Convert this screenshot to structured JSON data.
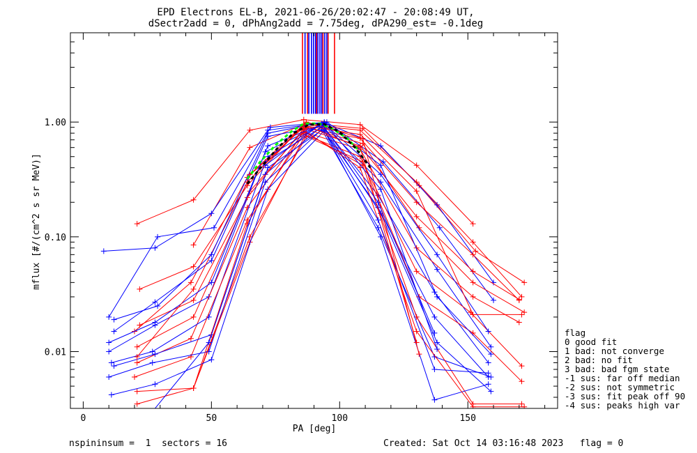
{
  "chart_data": {
    "type": "line",
    "title": "EPD Electrons EL-B, 2021-06-26/20:02:47 - 20:08:49 UT,",
    "subtitle": "dSectr2add = 0, dPhAng2add = 7.75deg, dPA290_est=  -0.1deg",
    "xlabel": "PA [deg]",
    "ylabel": "mflux [#/(cm^2 s sr MeV)]",
    "xlim": [
      -5,
      185
    ],
    "ylim": [
      0.0032,
      6
    ],
    "yscale": "log",
    "x_ticks": [
      0,
      50,
      100,
      150
    ],
    "x_tick_labels": [
      "0",
      "50",
      "100",
      "150"
    ],
    "y_ticks": [
      0.01,
      0.1,
      1.0
    ],
    "y_tick_labels": [
      "0.01",
      "0.10",
      "1.00"
    ],
    "grid": false,
    "colors": {
      "red": "#ff0000",
      "blue": "#0000ff",
      "green": "#00ff00",
      "black": "#000000"
    },
    "vertical_markers": {
      "y_from": 1.18,
      "red_x": [
        85.5,
        87.5,
        91.0,
        93.5,
        95.5,
        98.0
      ],
      "blue_x": [
        86.5,
        88.0,
        89.0,
        89.8,
        90.6,
        91.5,
        92.3,
        93.0,
        94.2,
        95.0
      ]
    },
    "series": [
      {
        "color": "red",
        "x": [
          21,
          43,
          65,
          86,
          108,
          130,
          152
        ],
        "y": [
          0.13,
          0.21,
          0.85,
          1.05,
          0.95,
          0.42,
          0.13
        ]
      },
      {
        "color": "red",
        "x": [
          43,
          65,
          87,
          109,
          131,
          153,
          172
        ],
        "y": [
          0.085,
          0.6,
          0.98,
          0.88,
          0.28,
          0.075,
          0.04
        ]
      },
      {
        "color": "blue",
        "x": [
          8,
          28,
          50,
          72,
          94,
          116,
          138,
          160
        ],
        "y": [
          0.075,
          0.08,
          0.16,
          0.85,
          0.99,
          0.62,
          0.19,
          0.04
        ]
      },
      {
        "color": "blue",
        "x": [
          10,
          29,
          51,
          73,
          95,
          117,
          139,
          160
        ],
        "y": [
          0.02,
          0.1,
          0.12,
          0.9,
          1.0,
          0.45,
          0.12,
          0.028
        ]
      },
      {
        "color": "red",
        "x": [
          22,
          43,
          64,
          86,
          108,
          130,
          152,
          171
        ],
        "y": [
          0.035,
          0.055,
          0.28,
          0.95,
          0.85,
          0.3,
          0.09,
          0.03
        ]
      },
      {
        "color": "red",
        "x": [
          20,
          42,
          64,
          86,
          108,
          130,
          152,
          170
        ],
        "y": [
          0.015,
          0.04,
          0.33,
          0.9,
          0.72,
          0.2,
          0.07,
          0.028
        ]
      },
      {
        "color": "blue",
        "x": [
          12,
          28,
          50,
          72,
          94,
          116,
          138,
          159
        ],
        "y": [
          0.015,
          0.027,
          0.062,
          0.75,
          0.93,
          0.3,
          0.052,
          0.011
        ]
      },
      {
        "color": "red",
        "x": [
          21,
          43,
          65,
          87,
          109,
          131,
          152,
          172
        ],
        "y": [
          0.011,
          0.02,
          0.25,
          0.9,
          0.65,
          0.12,
          0.04,
          0.022
        ]
      },
      {
        "color": "blue",
        "x": [
          10,
          28,
          49,
          71,
          93,
          115,
          137,
          158
        ],
        "y": [
          0.01,
          0.017,
          0.03,
          0.55,
          0.95,
          0.23,
          0.033,
          0.008
        ]
      },
      {
        "color": "red",
        "x": [
          21,
          42,
          64,
          86,
          108,
          130,
          152,
          170
        ],
        "y": [
          0.008,
          0.013,
          0.18,
          0.82,
          0.58,
          0.08,
          0.03,
          0.018
        ]
      },
      {
        "color": "blue",
        "x": [
          11,
          27,
          49,
          71,
          93,
          115,
          137,
          158
        ],
        "y": [
          0.008,
          0.01,
          0.02,
          0.45,
          0.9,
          0.18,
          0.02,
          0.006
        ]
      },
      {
        "color": "red",
        "x": [
          20,
          42,
          64,
          86,
          108,
          130,
          151,
          171
        ],
        "y": [
          0.006,
          0.009,
          0.14,
          0.78,
          0.5,
          0.05,
          0.022,
          0.0075
        ]
      },
      {
        "color": "blue",
        "x": [
          12,
          28,
          50,
          72,
          94,
          116,
          138,
          159
        ],
        "y": [
          0.0075,
          0.0095,
          0.014,
          0.4,
          0.88,
          0.16,
          0.012,
          0.0045
        ]
      },
      {
        "color": "red",
        "x": [
          21,
          43,
          65,
          87,
          109,
          131,
          152,
          171
        ],
        "y": [
          0.0045,
          0.0048,
          0.1,
          0.75,
          0.45,
          0.03,
          0.0145,
          0.0055
        ]
      },
      {
        "color": "blue",
        "x": [
          10,
          27,
          49,
          71,
          93,
          115,
          137,
          159
        ],
        "y": [
          0.006,
          0.008,
          0.01,
          0.3,
          0.86,
          0.12,
          0.009,
          0.006
        ]
      },
      {
        "color": "red",
        "x": [
          21,
          43,
          65,
          87,
          109,
          130,
          152,
          171
        ],
        "y": [
          0.0035,
          0.0048,
          0.09,
          0.8,
          0.42,
          0.02,
          0.0035,
          0.0035
        ]
      },
      {
        "color": "blue",
        "x": [
          11,
          28,
          50,
          72,
          94,
          116,
          137,
          158
        ],
        "y": [
          0.0042,
          0.0052,
          0.0085,
          0.26,
          0.84,
          0.1,
          0.0038,
          0.0052
        ]
      },
      {
        "color": "red",
        "x": [
          43,
          64,
          86,
          108,
          130,
          152,
          172
        ],
        "y": [
          0.0048,
          0.13,
          0.85,
          0.4,
          0.015,
          0.0033,
          0.0033
        ]
      },
      {
        "color": "blue",
        "x": [
          27,
          49,
          71,
          93,
          115,
          137,
          158
        ],
        "y": [
          0.003,
          0.012,
          0.35,
          0.92,
          0.14,
          0.007,
          0.0065
        ]
      },
      {
        "color": "red",
        "x": [
          22,
          43,
          64,
          86,
          108,
          130,
          152,
          170
        ],
        "y": [
          0.017,
          0.028,
          0.22,
          0.88,
          0.62,
          0.15,
          0.05,
          0.0285
        ]
      },
      {
        "color": "blue",
        "x": [
          10,
          28,
          50,
          72,
          94,
          116,
          138,
          158
        ],
        "y": [
          0.012,
          0.018,
          0.04,
          0.62,
          0.97,
          0.35,
          0.07,
          0.015
        ]
      },
      {
        "color": "red",
        "x": [
          21,
          43,
          64,
          86,
          108,
          130,
          152,
          171
        ],
        "y": [
          0.009,
          0.035,
          0.3,
          0.93,
          0.78,
          0.25,
          0.021,
          0.021
        ]
      },
      {
        "color": "blue",
        "x": [
          12,
          29,
          50,
          72,
          94,
          116,
          138,
          159
        ],
        "y": [
          0.019,
          0.025,
          0.07,
          0.8,
          1.0,
          0.42,
          0.03,
          0.0095
        ]
      },
      {
        "color": "red",
        "x": [
          65,
          87,
          109,
          131
        ],
        "y": [
          0.35,
          1.0,
          0.72,
          0.0095
        ]
      },
      {
        "color": "red",
        "x": [
          64,
          86,
          108,
          130
        ],
        "y": [
          0.3,
          0.95,
          0.6,
          0.012
        ]
      },
      {
        "color": "blue",
        "x": [
          71,
          93,
          115,
          137
        ],
        "y": [
          0.42,
          0.97,
          0.2,
          0.0145
        ]
      },
      {
        "color": "blue",
        "x": [
          72,
          94,
          116,
          138
        ],
        "y": [
          0.5,
          0.99,
          0.26,
          0.0105
        ]
      },
      {
        "color": "green",
        "dashed": true,
        "x": [
          64,
          69,
          75,
          81,
          86,
          92,
          97,
          103,
          108
        ],
        "y": [
          0.32,
          0.45,
          0.63,
          0.82,
          0.97,
          0.97,
          0.88,
          0.72,
          0.55
        ]
      },
      {
        "color": "black",
        "dashed": true,
        "x": [
          64,
          70,
          76,
          82,
          88,
          94,
          100,
          106,
          112
        ],
        "y": [
          0.29,
          0.42,
          0.6,
          0.8,
          0.95,
          0.96,
          0.82,
          0.6,
          0.4
        ]
      }
    ],
    "legend": {
      "placement": "right",
      "title": "flag",
      "entries": [
        " 0 good fit",
        " 1 bad: not converge",
        " 2 bad: no fit",
        " 3 bad: bad fgm state",
        "-1 sus: far off median",
        "-2 sus: not symmetric",
        "-3 sus: fit peak off 90",
        "-4 sus: peaks high var"
      ]
    },
    "footer_left": "nspininsum =  1  sectors = 16",
    "footer_right": "Created: Sat Oct 14 03:16:48 2023   flag = 0"
  }
}
